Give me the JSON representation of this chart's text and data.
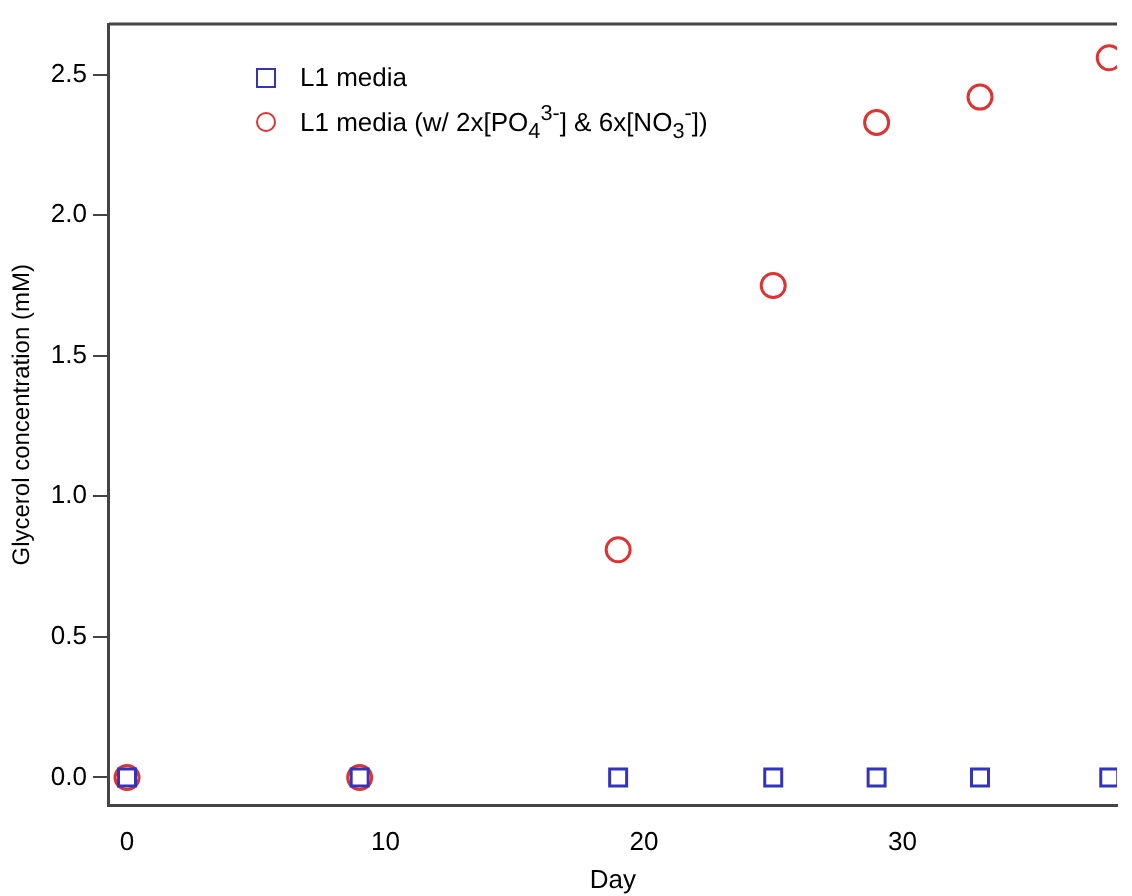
{
  "chart_data": {
    "type": "scatter",
    "xlabel": "Day",
    "ylabel": "Glycerol concentration (mM)",
    "series": [
      {
        "name": "L1 media",
        "color": "#3333bb",
        "marker": "square",
        "x": [
          0,
          9,
          19,
          25,
          29,
          33,
          38
        ],
        "values": [
          0,
          0,
          0,
          0,
          0,
          0,
          0
        ]
      },
      {
        "name": "L1 media (w/ 2x[PO$_{4}$$^{3-}$] & 6x[NO$_{3}$$^{-}$])",
        "color": "#dd3333",
        "marker": "circle",
        "x": [
          0,
          9,
          19,
          25,
          29,
          33,
          38
        ],
        "values": [
          0,
          0,
          0.81,
          1.75,
          2.33,
          2.42,
          2.56
        ]
      }
    ],
    "xlim": [
      -0.7,
      38.3
    ],
    "xticks": [
      0,
      10,
      20,
      30
    ],
    "ylim": [
      -0.1,
      2.68
    ],
    "yticks": [
      {
        "value": 0,
        "label": "0.0"
      },
      {
        "value": 0.5,
        "label": "0.5"
      },
      {
        "value": 1,
        "label": "1.0"
      },
      {
        "value": 1.5,
        "label": "1.5"
      },
      {
        "value": 2,
        "label": "2.0"
      },
      {
        "value": 2.5,
        "label": "2.5"
      }
    ],
    "grid": false,
    "legend": "top left"
  }
}
